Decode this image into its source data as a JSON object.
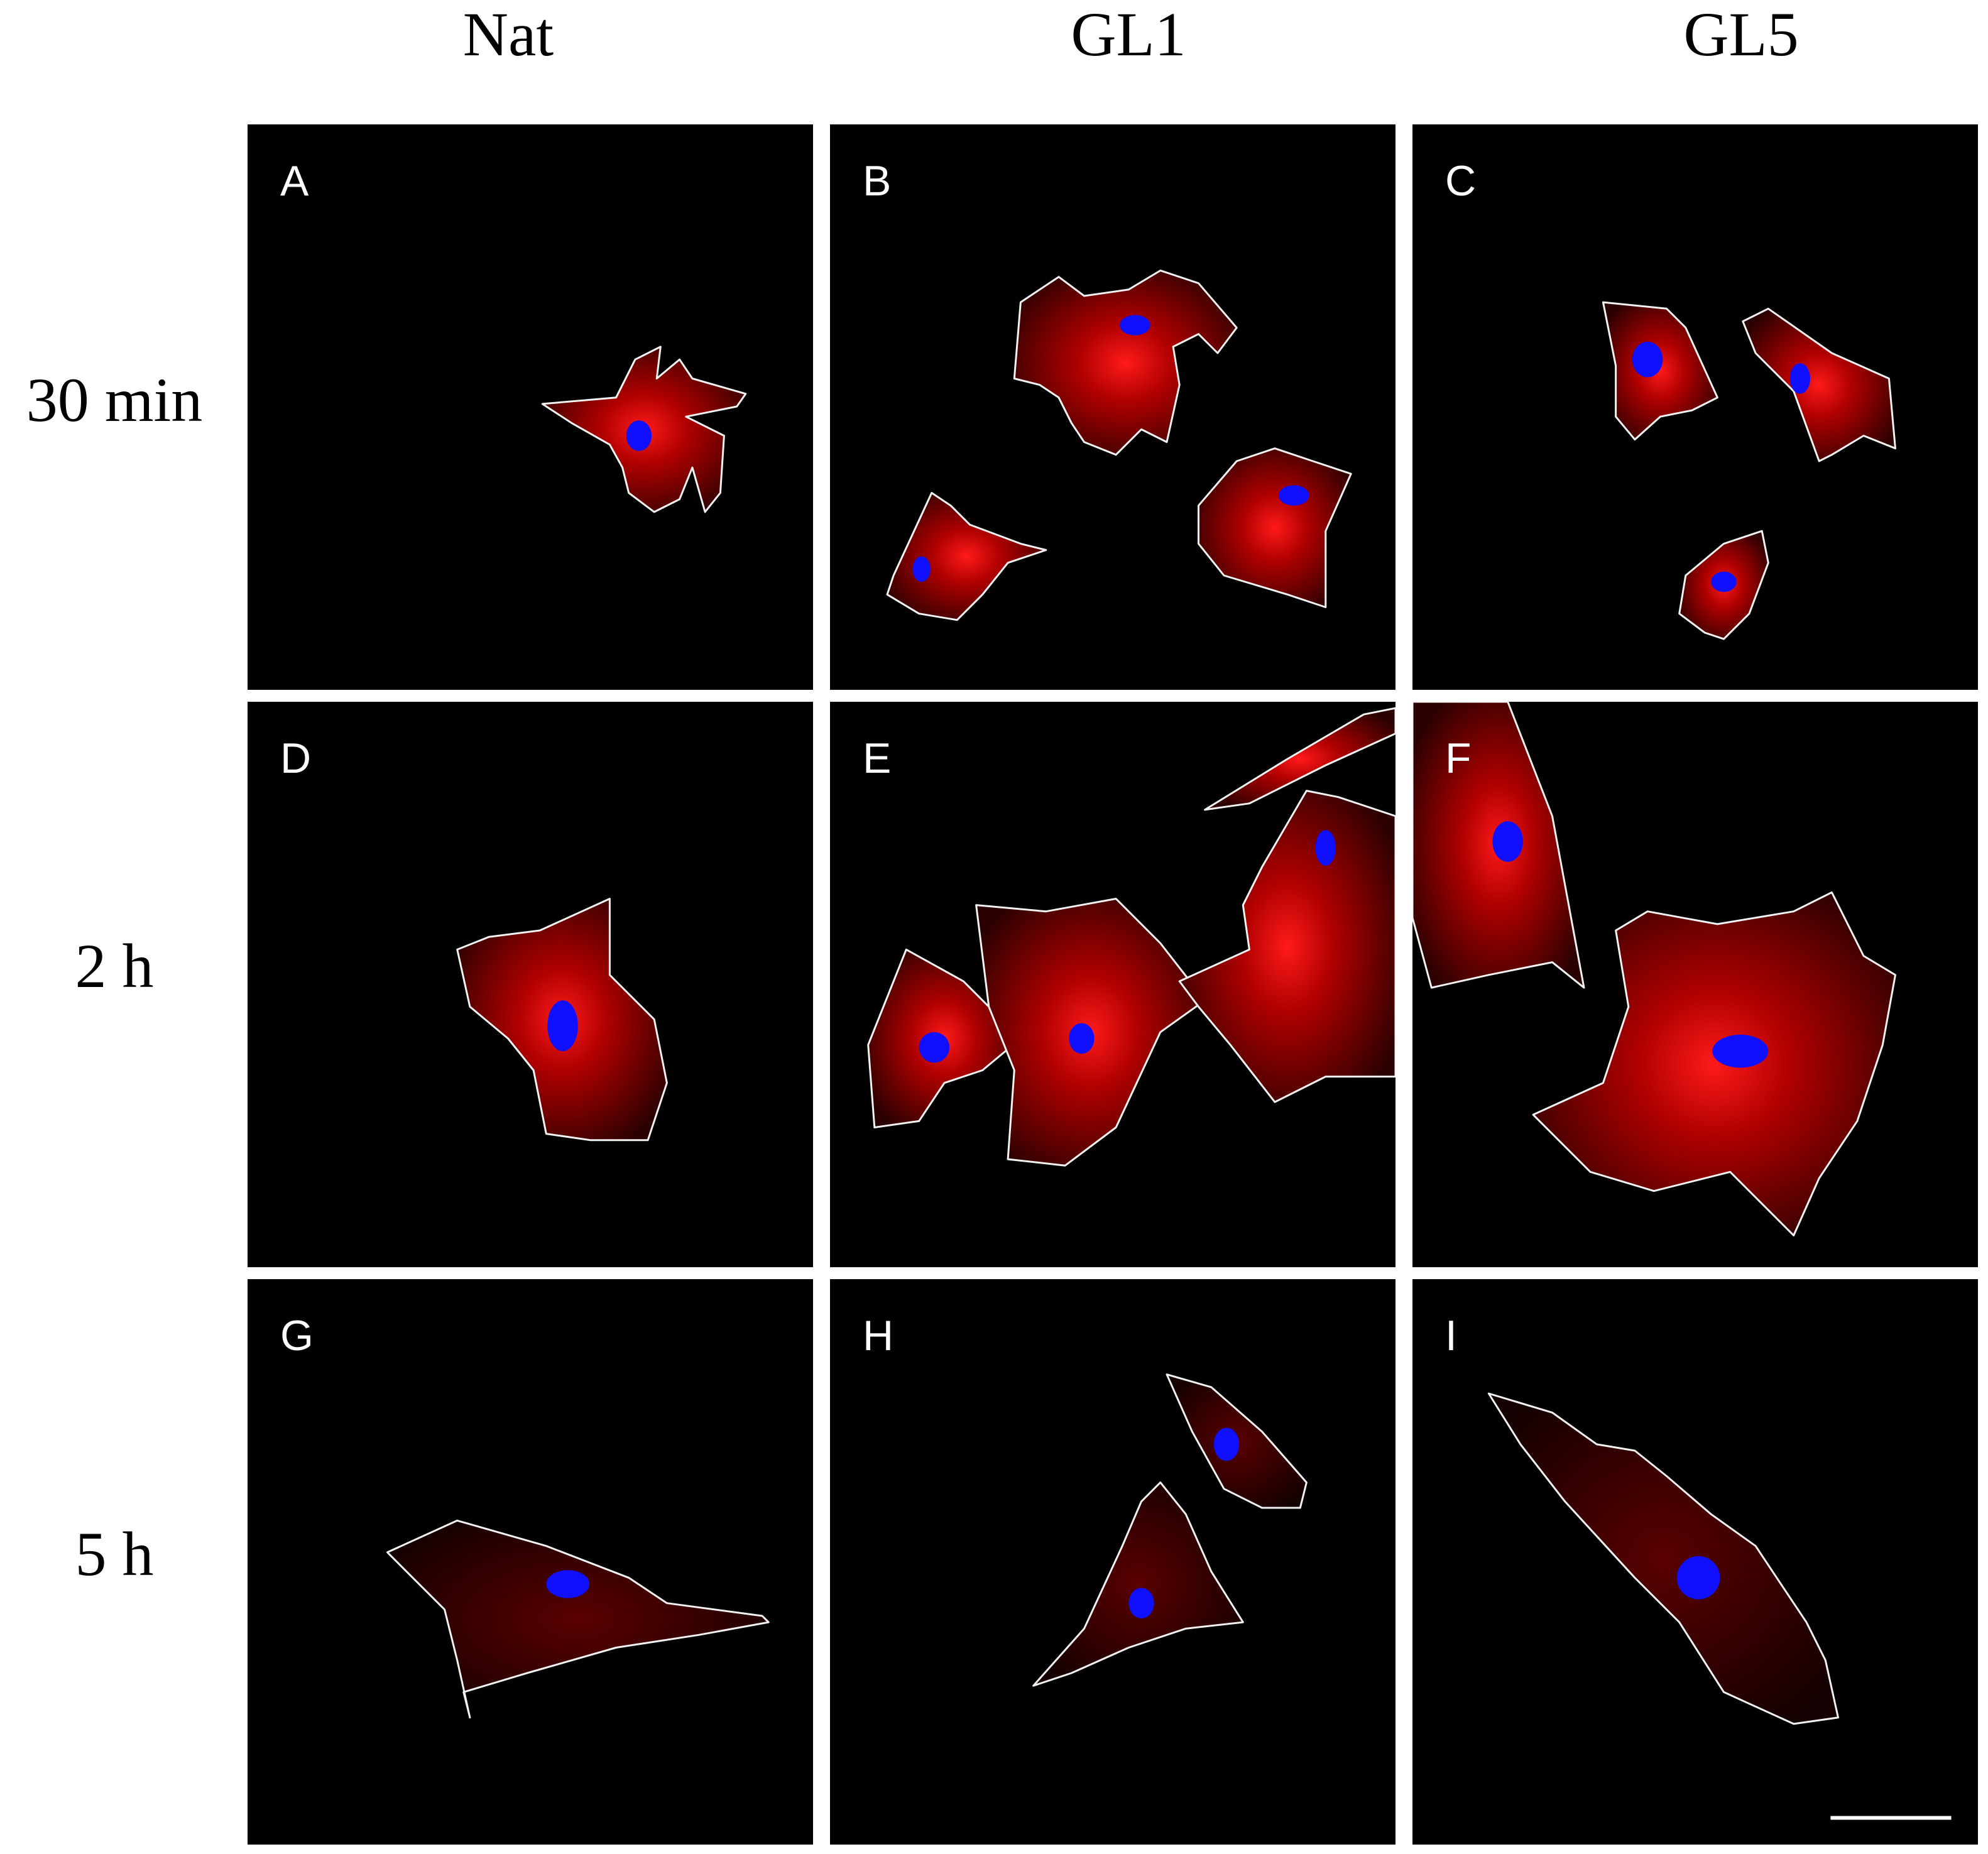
{
  "column_headers": [
    "Nat",
    "GL1",
    "GL5"
  ],
  "row_labels": [
    "30 min",
    "2 h",
    "5 h"
  ],
  "panels": [
    "A",
    "B",
    "C",
    "D",
    "E",
    "F",
    "G",
    "H",
    "I"
  ]
}
